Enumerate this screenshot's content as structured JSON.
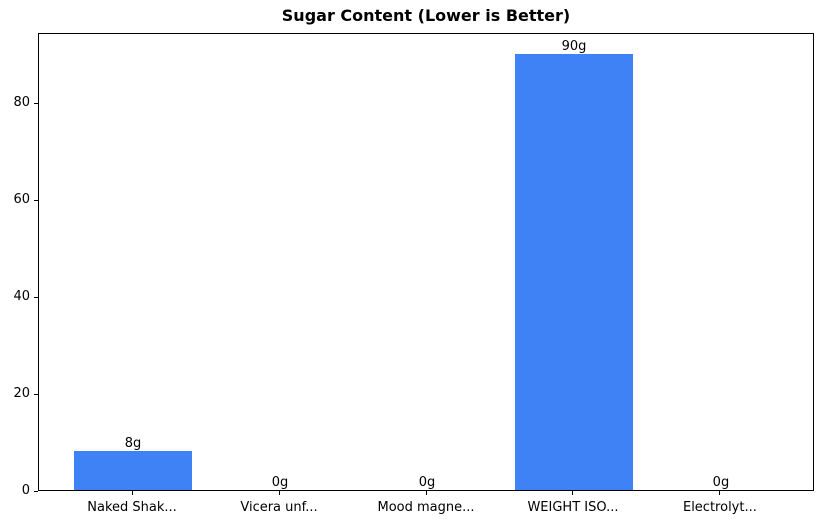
{
  "chart_data": {
    "type": "bar",
    "title": "Sugar Content (Lower is Better)",
    "categories": [
      "Naked Shak...",
      "Vicera unf...",
      "Mood magne...",
      "WEIGHT ISO...",
      "Electrolyt..."
    ],
    "values": [
      8,
      0,
      0,
      90,
      0
    ],
    "value_labels": [
      "8g",
      "0g",
      "0g",
      "90g",
      "0g"
    ],
    "xlabel": "",
    "ylabel": "",
    "ylim": [
      0,
      94.5
    ],
    "yticks": [
      0,
      20,
      40,
      60,
      80
    ],
    "grid": false,
    "legend": "none",
    "bar_color": "#3e82f5",
    "text_color": "#000000",
    "spine_color": "#000000",
    "background_color": "#ffffff"
  }
}
